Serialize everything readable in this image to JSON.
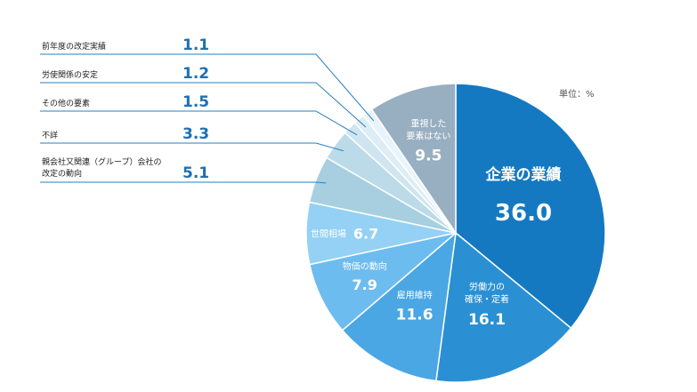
{
  "chart_data": {
    "type": "pie",
    "unit_label": "単位：%",
    "slices": [
      {
        "label": "企業の業績",
        "value": 36.0,
        "display": "36.0",
        "color": "#1479c1"
      },
      {
        "label": "労働力の確保・定着",
        "value": 16.1,
        "display": "16.1",
        "color": "#2a90d3"
      },
      {
        "label": "雇用維持",
        "value": 11.6,
        "display": "11.6",
        "color": "#4aa7e4"
      },
      {
        "label": "物価の動向",
        "value": 7.9,
        "display": "7.9",
        "color": "#6dbcef"
      },
      {
        "label": "世間相場",
        "value": 6.7,
        "display": "6.7",
        "color": "#94d1f4"
      },
      {
        "label": "親会社又関連（グループ）会社の改定の動向",
        "value": 5.1,
        "display": "5.1",
        "color": "#a7cfe0"
      },
      {
        "label": "不詳",
        "value": 3.3,
        "display": "3.3",
        "color": "#bcdbe8"
      },
      {
        "label": "その他の要素",
        "value": 1.5,
        "display": "1.5",
        "color": "#cfe5ef"
      },
      {
        "label": "労使関係の安定",
        "value": 1.2,
        "display": "1.2",
        "color": "#dcedf5"
      },
      {
        "label": "前年度の改定実績",
        "value": 1.1,
        "display": "1.1",
        "color": "#e9f4fa"
      },
      {
        "label": "重視した要素はない",
        "value": 9.5,
        "display": "9.5",
        "color": "#97afc0"
      }
    ]
  }
}
